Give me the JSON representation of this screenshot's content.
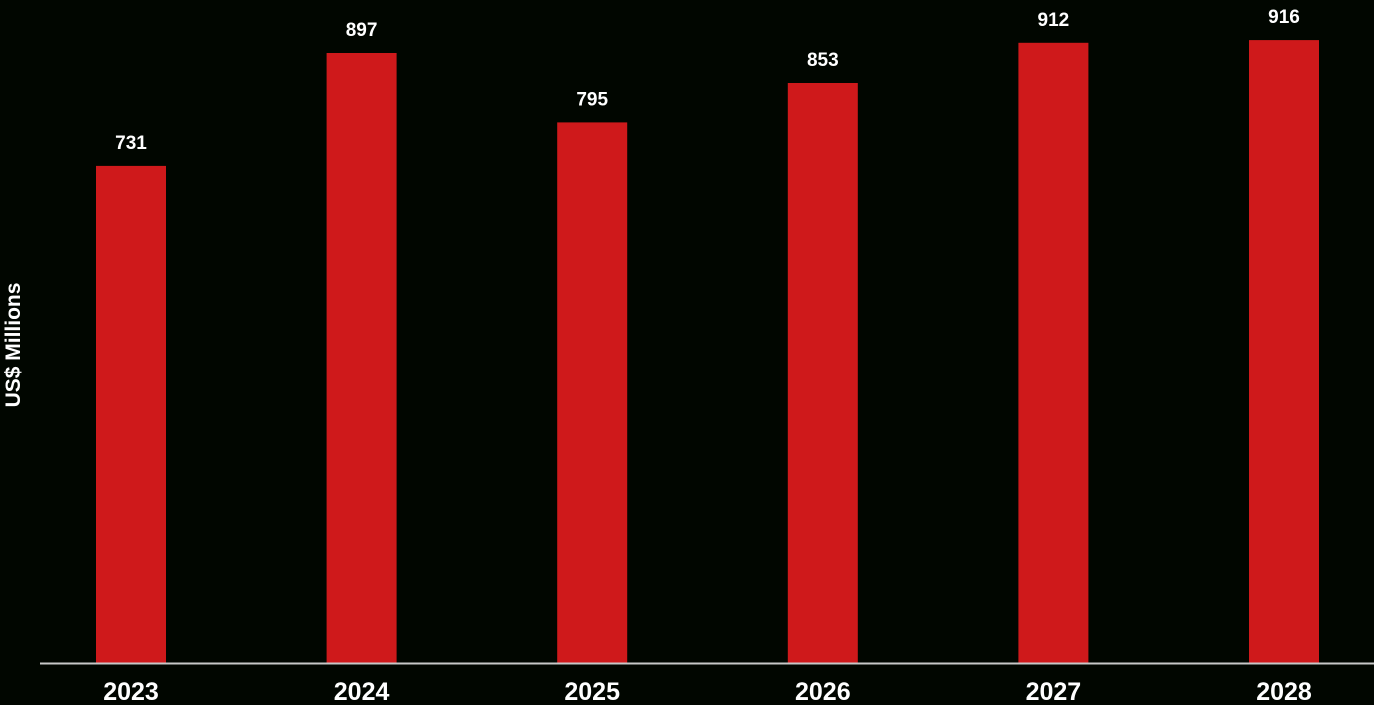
{
  "chart_data": {
    "type": "bar",
    "categories": [
      "2023",
      "2024",
      "2025",
      "2026",
      "2027",
      "2028"
    ],
    "values": [
      731,
      897,
      795,
      853,
      912,
      916
    ],
    "title": "",
    "xlabel": "",
    "ylabel": "US$ Millions",
    "ylim": [
      0,
      1000
    ],
    "grid": false,
    "legend": "none",
    "data_labels": true
  },
  "colors": {
    "background": "#010600",
    "bar": "#cf191b",
    "axis_line": "#c8c8c8",
    "text": "#ffffff"
  }
}
